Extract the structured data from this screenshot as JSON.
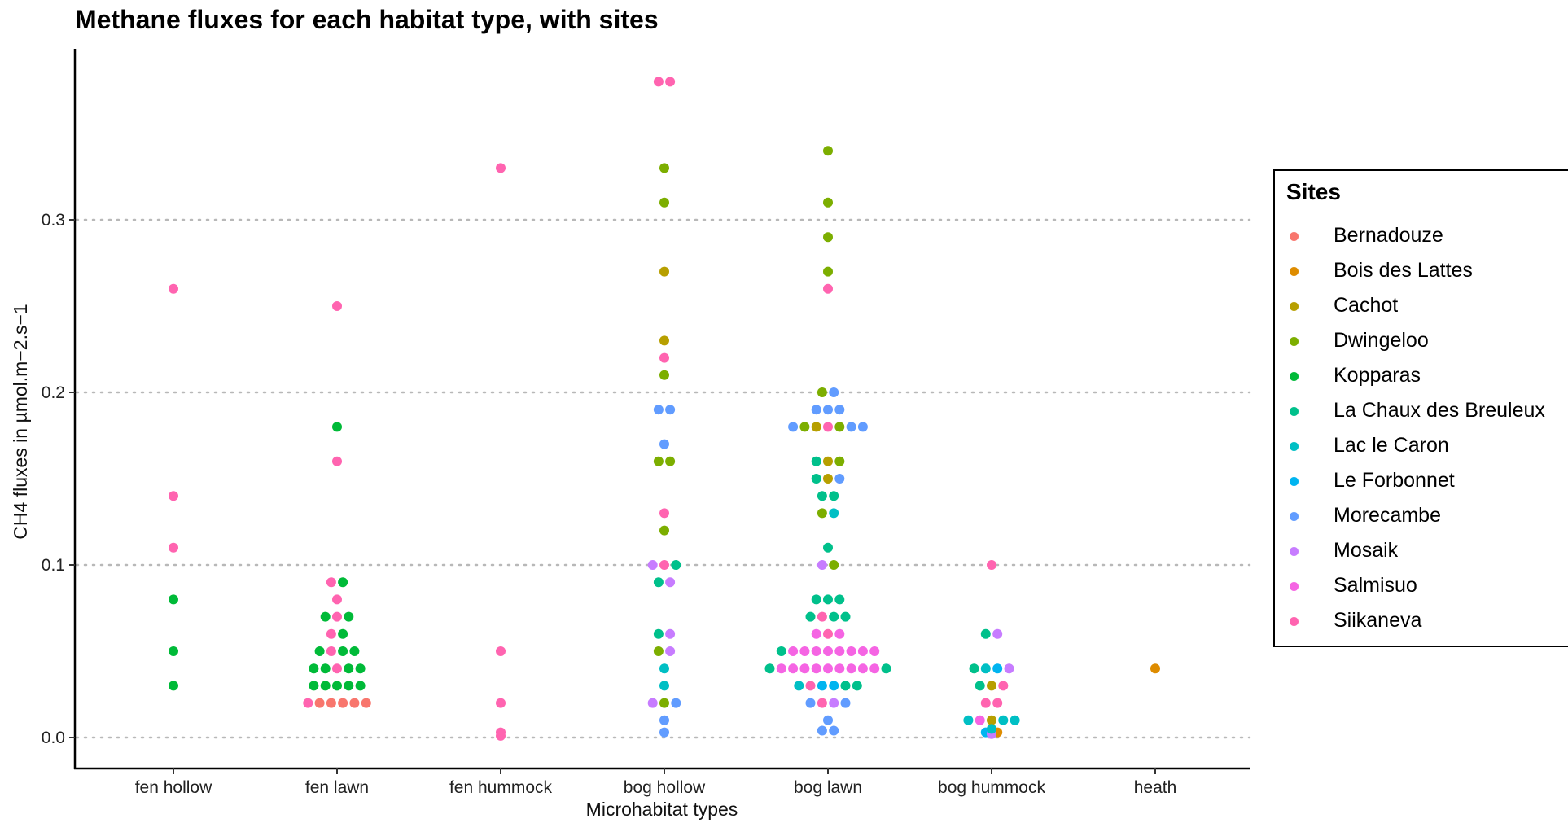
{
  "chart_data": {
    "type": "scatter",
    "title": "Methane fluxes for each habitat type, with sites",
    "xlabel": "Microhabitat types",
    "ylabel": "CH4 fluxes in µmol.m−2.s−1",
    "categories": [
      "fen hollow",
      "fen lawn",
      "fen hummock",
      "bog hollow",
      "bog lawn",
      "bog hummock",
      "heath"
    ],
    "y_ticks": [
      0.0,
      0.1,
      0.2,
      0.3
    ],
    "y_tick_labels": [
      "0.0",
      "0.1",
      "0.2",
      "0.3"
    ],
    "ylim": [
      -0.017,
      0.39
    ],
    "grid": "horizontal dotted",
    "legend": {
      "title": "Sites",
      "position": "right",
      "entries": [
        {
          "name": "Bernadouze",
          "color": "#F8766D"
        },
        {
          "name": "Bois des Lattes",
          "color": "#DE8C00"
        },
        {
          "name": "Cachot",
          "color": "#B79F00"
        },
        {
          "name": "Dwingeloo",
          "color": "#7CAE00"
        },
        {
          "name": "Kopparas",
          "color": "#00BA38"
        },
        {
          "name": "La Chaux des Breuleux",
          "color": "#00C08B"
        },
        {
          "name": "Lac le Caron",
          "color": "#00BFC4"
        },
        {
          "name": "Le Forbonnet",
          "color": "#00B4F0"
        },
        {
          "name": "Morecambe",
          "color": "#619CFF"
        },
        {
          "name": "Mosaik",
          "color": "#C77CFF"
        },
        {
          "name": "Salmisuo",
          "color": "#F564E3"
        },
        {
          "name": "Siikaneva",
          "color": "#FF64B0"
        }
      ]
    },
    "series": [
      {
        "category": "fen hollow",
        "points": [
          [
            "Siikaneva",
            0.26
          ],
          [
            "Siikaneva",
            0.14
          ],
          [
            "Siikaneva",
            0.11
          ],
          [
            "Kopparas",
            0.08
          ],
          [
            "Kopparas",
            0.05
          ],
          [
            "Kopparas",
            0.03
          ]
        ]
      },
      {
        "category": "fen lawn",
        "points": [
          [
            "Siikaneva",
            0.25
          ],
          [
            "Kopparas",
            0.18
          ],
          [
            "Siikaneva",
            0.16
          ],
          [
            "Siikaneva",
            0.09
          ],
          [
            "Kopparas",
            0.09
          ],
          [
            "Siikaneva",
            0.08
          ],
          [
            "Kopparas",
            0.07
          ],
          [
            "Siikaneva",
            0.07
          ],
          [
            "Kopparas",
            0.07
          ],
          [
            "Siikaneva",
            0.06
          ],
          [
            "Kopparas",
            0.06
          ],
          [
            "Kopparas",
            0.05
          ],
          [
            "Siikaneva",
            0.05
          ],
          [
            "Kopparas",
            0.05
          ],
          [
            "Kopparas",
            0.05
          ],
          [
            "Kopparas",
            0.04
          ],
          [
            "Kopparas",
            0.04
          ],
          [
            "Siikaneva",
            0.04
          ],
          [
            "Kopparas",
            0.04
          ],
          [
            "Kopparas",
            0.04
          ],
          [
            "Kopparas",
            0.03
          ],
          [
            "Kopparas",
            0.03
          ],
          [
            "Kopparas",
            0.03
          ],
          [
            "Kopparas",
            0.03
          ],
          [
            "Kopparas",
            0.03
          ],
          [
            "Siikaneva",
            0.02
          ],
          [
            "Bernadouze",
            0.02
          ],
          [
            "Bernadouze",
            0.02
          ],
          [
            "Bernadouze",
            0.02
          ],
          [
            "Bernadouze",
            0.02
          ],
          [
            "Bernadouze",
            0.02
          ]
        ]
      },
      {
        "category": "fen hummock",
        "points": [
          [
            "Siikaneva",
            0.33
          ],
          [
            "Siikaneva",
            0.05
          ],
          [
            "Siikaneva",
            0.02
          ],
          [
            "Siikaneva",
            0.001
          ],
          [
            "Siikaneva",
            0.003
          ]
        ]
      },
      {
        "category": "bog hollow",
        "points": [
          [
            "Siikaneva",
            0.38
          ],
          [
            "Siikaneva",
            0.38
          ],
          [
            "Dwingeloo",
            0.33
          ],
          [
            "Dwingeloo",
            0.31
          ],
          [
            "Cachot",
            0.27
          ],
          [
            "Cachot",
            0.23
          ],
          [
            "Siikaneva",
            0.22
          ],
          [
            "Dwingeloo",
            0.21
          ],
          [
            "Morecambe",
            0.19
          ],
          [
            "Morecambe",
            0.19
          ],
          [
            "Morecambe",
            0.17
          ],
          [
            "Dwingeloo",
            0.16
          ],
          [
            "Dwingeloo",
            0.16
          ],
          [
            "Siikaneva",
            0.13
          ],
          [
            "Dwingeloo",
            0.12
          ],
          [
            "Mosaik",
            0.1
          ],
          [
            "Siikaneva",
            0.1
          ],
          [
            "La Chaux des Breuleux",
            0.1
          ],
          [
            "La Chaux des Breuleux",
            0.09
          ],
          [
            "Mosaik",
            0.09
          ],
          [
            "La Chaux des Breuleux",
            0.06
          ],
          [
            "Mosaik",
            0.06
          ],
          [
            "Dwingeloo",
            0.05
          ],
          [
            "Mosaik",
            0.05
          ],
          [
            "Lac le Caron",
            0.04
          ],
          [
            "Lac le Caron",
            0.03
          ],
          [
            "Mosaik",
            0.02
          ],
          [
            "Dwingeloo",
            0.02
          ],
          [
            "Morecambe",
            0.02
          ],
          [
            "Morecambe",
            0.01
          ],
          [
            "Morecambe",
            0.003
          ]
        ]
      },
      {
        "category": "bog lawn",
        "points": [
          [
            "Dwingeloo",
            0.34
          ],
          [
            "Dwingeloo",
            0.31
          ],
          [
            "Dwingeloo",
            0.29
          ],
          [
            "Dwingeloo",
            0.27
          ],
          [
            "Siikaneva",
            0.26
          ],
          [
            "Dwingeloo",
            0.2
          ],
          [
            "Morecambe",
            0.2
          ],
          [
            "Morecambe",
            0.19
          ],
          [
            "Morecambe",
            0.19
          ],
          [
            "Morecambe",
            0.19
          ],
          [
            "Morecambe",
            0.18
          ],
          [
            "Dwingeloo",
            0.18
          ],
          [
            "Cachot",
            0.18
          ],
          [
            "Siikaneva",
            0.18
          ],
          [
            "Dwingeloo",
            0.18
          ],
          [
            "Morecambe",
            0.18
          ],
          [
            "Morecambe",
            0.18
          ],
          [
            "La Chaux des Breuleux",
            0.16
          ],
          [
            "Cachot",
            0.16
          ],
          [
            "Dwingeloo",
            0.16
          ],
          [
            "La Chaux des Breuleux",
            0.15
          ],
          [
            "Cachot",
            0.15
          ],
          [
            "Morecambe",
            0.15
          ],
          [
            "La Chaux des Breuleux",
            0.14
          ],
          [
            "La Chaux des Breuleux",
            0.14
          ],
          [
            "Dwingeloo",
            0.13
          ],
          [
            "Lac le Caron",
            0.13
          ],
          [
            "La Chaux des Breuleux",
            0.11
          ],
          [
            "Mosaik",
            0.1
          ],
          [
            "Dwingeloo",
            0.1
          ],
          [
            "La Chaux des Breuleux",
            0.08
          ],
          [
            "La Chaux des Breuleux",
            0.08
          ],
          [
            "La Chaux des Breuleux",
            0.08
          ],
          [
            "La Chaux des Breuleux",
            0.07
          ],
          [
            "Siikaneva",
            0.07
          ],
          [
            "La Chaux des Breuleux",
            0.07
          ],
          [
            "La Chaux des Breuleux",
            0.07
          ],
          [
            "Salmisuo",
            0.06
          ],
          [
            "Siikaneva",
            0.06
          ],
          [
            "Salmisuo",
            0.06
          ],
          [
            "La Chaux des Breuleux",
            0.05
          ],
          [
            "Salmisuo",
            0.05
          ],
          [
            "Salmisuo",
            0.05
          ],
          [
            "Salmisuo",
            0.05
          ],
          [
            "Salmisuo",
            0.05
          ],
          [
            "Salmisuo",
            0.05
          ],
          [
            "Salmisuo",
            0.05
          ],
          [
            "Salmisuo",
            0.05
          ],
          [
            "Salmisuo",
            0.05
          ],
          [
            "La Chaux des Breuleux",
            0.04
          ],
          [
            "Salmisuo",
            0.04
          ],
          [
            "Salmisuo",
            0.04
          ],
          [
            "Salmisuo",
            0.04
          ],
          [
            "Salmisuo",
            0.04
          ],
          [
            "Salmisuo",
            0.04
          ],
          [
            "Salmisuo",
            0.04
          ],
          [
            "Salmisuo",
            0.04
          ],
          [
            "Salmisuo",
            0.04
          ],
          [
            "Salmisuo",
            0.04
          ],
          [
            "La Chaux des Breuleux",
            0.04
          ],
          [
            "Lac le Caron",
            0.03
          ],
          [
            "Siikaneva",
            0.03
          ],
          [
            "Le Forbonnet",
            0.03
          ],
          [
            "Le Forbonnet",
            0.03
          ],
          [
            "La Chaux des Breuleux",
            0.03
          ],
          [
            "La Chaux des Breuleux",
            0.03
          ],
          [
            "Morecambe",
            0.02
          ],
          [
            "Siikaneva",
            0.02
          ],
          [
            "Mosaik",
            0.02
          ],
          [
            "Morecambe",
            0.02
          ],
          [
            "Morecambe",
            0.01
          ],
          [
            "Morecambe",
            0.004
          ],
          [
            "Morecambe",
            0.004
          ]
        ]
      },
      {
        "category": "bog hummock",
        "points": [
          [
            "Siikaneva",
            0.1
          ],
          [
            "La Chaux des Breuleux",
            0.06
          ],
          [
            "Mosaik",
            0.06
          ],
          [
            "La Chaux des Breuleux",
            0.04
          ],
          [
            "Lac le Caron",
            0.04
          ],
          [
            "Le Forbonnet",
            0.04
          ],
          [
            "Mosaik",
            0.04
          ],
          [
            "La Chaux des Breuleux",
            0.03
          ],
          [
            "Cachot",
            0.03
          ],
          [
            "Siikaneva",
            0.03
          ],
          [
            "Siikaneva",
            0.02
          ],
          [
            "Siikaneva",
            0.02
          ],
          [
            "Lac le Caron",
            0.01
          ],
          [
            "Salmisuo",
            0.01
          ],
          [
            "Cachot",
            0.01
          ],
          [
            "Lac le Caron",
            0.01
          ],
          [
            "Lac le Caron",
            0.01
          ],
          [
            "Le Forbonnet",
            0.003
          ],
          [
            "Mosaik",
            0.002
          ],
          [
            "Bois des Lattes",
            0.003
          ],
          [
            "Lac le Caron",
            0.005
          ]
        ]
      },
      {
        "category": "heath",
        "points": [
          [
            "Bois des Lattes",
            0.04
          ]
        ]
      }
    ]
  }
}
